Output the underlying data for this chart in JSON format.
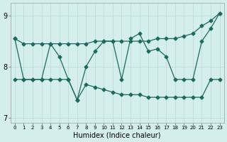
{
  "xlabel": "Humidex (Indice chaleur)",
  "bg_color": "#d4eeeb",
  "grid_color": "#c0ddd9",
  "line_color": "#1a6b5e",
  "xlim": [
    -0.5,
    23.5
  ],
  "ylim": [
    6.9,
    9.25
  ],
  "yticks": [
    7,
    8,
    9
  ],
  "xticks": [
    0,
    1,
    2,
    3,
    4,
    5,
    6,
    7,
    8,
    9,
    10,
    11,
    12,
    13,
    14,
    15,
    16,
    17,
    18,
    19,
    20,
    21,
    22,
    23
  ],
  "series1": [
    8.55,
    8.45,
    8.45,
    8.45,
    8.45,
    8.45,
    8.45,
    8.45,
    8.45,
    8.5,
    8.5,
    8.5,
    8.5,
    8.5,
    8.5,
    8.5,
    8.55,
    8.55,
    8.55,
    8.6,
    8.65,
    8.8,
    8.9,
    9.05
  ],
  "series2": [
    8.55,
    7.75,
    7.75,
    7.75,
    8.45,
    8.2,
    7.75,
    7.35,
    8.0,
    8.3,
    8.5,
    8.5,
    7.75,
    8.55,
    8.65,
    8.3,
    8.35,
    8.2,
    7.75,
    7.75,
    7.75,
    8.5,
    8.75,
    9.05
  ],
  "series3": [
    7.75,
    7.75,
    7.75,
    7.75,
    7.75,
    7.75,
    7.75,
    7.35,
    7.65,
    7.6,
    7.55,
    7.5,
    7.45,
    7.45,
    7.45,
    7.4,
    7.4,
    7.4,
    7.4,
    7.4,
    7.4,
    7.4,
    7.75,
    7.75
  ]
}
